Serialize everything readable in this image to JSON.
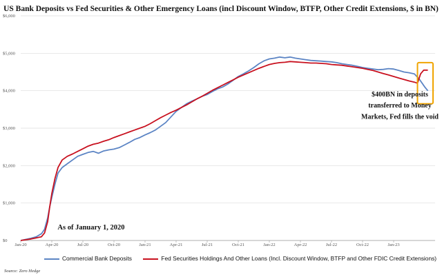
{
  "chart_data": {
    "type": "line",
    "title": "US Bank Deposits vs Fed Securities & Other Emergency Loans (incl Discount Window, BTFP, Other Credit Extensions, $ in BN)",
    "y_unit": "$ in BN",
    "ylim": [
      0,
      6000
    ],
    "y_ticks": [
      0,
      1000,
      2000,
      3000,
      4000,
      5000,
      6000
    ],
    "y_tick_labels": [
      "$0",
      "$1,000",
      "$2,000",
      "$3,000",
      "$4,000",
      "$5,000",
      "$6,000"
    ],
    "x_tick_labels": [
      "Jan-20",
      "Apr-20",
      "Jul-20",
      "Oct-20",
      "Jan-21",
      "Apr-21",
      "Jul-21",
      "Oct-21",
      "Jan-22",
      "Apr-22",
      "Jul-22",
      "Oct-22",
      "Jan-23"
    ],
    "x_ticks_month_index": [
      0,
      3,
      6,
      9,
      12,
      15,
      18,
      21,
      24,
      27,
      30,
      33,
      36
    ],
    "x_range_month_index": [
      0,
      40
    ],
    "grid": "horizontal",
    "legend_position": "bottom",
    "series": [
      {
        "name": "Commercial Bank Deposits",
        "color": "#5b84c4",
        "points": [
          [
            0,
            0
          ],
          [
            0.5,
            30
          ],
          [
            1,
            60
          ],
          [
            1.5,
            100
          ],
          [
            2,
            180
          ],
          [
            2.3,
            300
          ],
          [
            2.6,
            600
          ],
          [
            2.8,
            900
          ],
          [
            3,
            1150
          ],
          [
            3.3,
            1500
          ],
          [
            3.6,
            1800
          ],
          [
            4,
            1950
          ],
          [
            4.5,
            2050
          ],
          [
            5,
            2150
          ],
          [
            5.5,
            2250
          ],
          [
            6,
            2300
          ],
          [
            6.5,
            2350
          ],
          [
            7,
            2380
          ],
          [
            7.5,
            2330
          ],
          [
            8,
            2390
          ],
          [
            8.5,
            2420
          ],
          [
            9,
            2440
          ],
          [
            9.5,
            2480
          ],
          [
            10,
            2550
          ],
          [
            10.5,
            2620
          ],
          [
            11,
            2700
          ],
          [
            11.5,
            2750
          ],
          [
            12,
            2820
          ],
          [
            12.5,
            2880
          ],
          [
            13,
            2950
          ],
          [
            13.5,
            3050
          ],
          [
            14,
            3150
          ],
          [
            14.5,
            3300
          ],
          [
            15,
            3450
          ],
          [
            15.5,
            3550
          ],
          [
            16,
            3650
          ],
          [
            16.5,
            3720
          ],
          [
            17,
            3780
          ],
          [
            17.5,
            3850
          ],
          [
            18,
            3900
          ],
          [
            18.5,
            3980
          ],
          [
            19,
            4050
          ],
          [
            19.5,
            4100
          ],
          [
            20,
            4180
          ],
          [
            20.5,
            4280
          ],
          [
            21,
            4380
          ],
          [
            21.5,
            4450
          ],
          [
            22,
            4530
          ],
          [
            22.5,
            4620
          ],
          [
            23,
            4720
          ],
          [
            23.5,
            4800
          ],
          [
            24,
            4850
          ],
          [
            24.5,
            4870
          ],
          [
            25,
            4900
          ],
          [
            25.5,
            4880
          ],
          [
            26,
            4900
          ],
          [
            26.5,
            4870
          ],
          [
            27,
            4850
          ],
          [
            27.5,
            4830
          ],
          [
            28,
            4810
          ],
          [
            28.5,
            4800
          ],
          [
            29,
            4790
          ],
          [
            29.5,
            4780
          ],
          [
            30,
            4770
          ],
          [
            30.5,
            4750
          ],
          [
            31,
            4720
          ],
          [
            31.5,
            4700
          ],
          [
            32,
            4680
          ],
          [
            32.5,
            4650
          ],
          [
            33,
            4620
          ],
          [
            33.5,
            4600
          ],
          [
            34,
            4580
          ],
          [
            34.5,
            4560
          ],
          [
            35,
            4570
          ],
          [
            35.5,
            4590
          ],
          [
            36,
            4580
          ],
          [
            36.5,
            4540
          ],
          [
            37,
            4500
          ],
          [
            37.5,
            4480
          ],
          [
            38,
            4450
          ],
          [
            38.5,
            4300
          ],
          [
            39,
            4100
          ],
          [
            39.3,
            4000
          ]
        ]
      },
      {
        "name": "Fed Securities Holdings And Other Loans (Incl. Discount Window, BTFP and Other FDIC Credit Extensions)",
        "color": "#c8101e",
        "points": [
          [
            0,
            0
          ],
          [
            0.5,
            20
          ],
          [
            1,
            40
          ],
          [
            1.5,
            70
          ],
          [
            2,
            100
          ],
          [
            2.3,
            200
          ],
          [
            2.6,
            500
          ],
          [
            2.8,
            900
          ],
          [
            3,
            1250
          ],
          [
            3.3,
            1650
          ],
          [
            3.6,
            1950
          ],
          [
            4,
            2150
          ],
          [
            4.5,
            2250
          ],
          [
            5,
            2310
          ],
          [
            5.5,
            2380
          ],
          [
            6,
            2450
          ],
          [
            6.5,
            2520
          ],
          [
            7,
            2570
          ],
          [
            7.5,
            2600
          ],
          [
            8,
            2650
          ],
          [
            8.5,
            2690
          ],
          [
            9,
            2750
          ],
          [
            9.5,
            2800
          ],
          [
            10,
            2850
          ],
          [
            10.5,
            2900
          ],
          [
            11,
            2950
          ],
          [
            11.5,
            3000
          ],
          [
            12,
            3050
          ],
          [
            12.5,
            3120
          ],
          [
            13,
            3200
          ],
          [
            13.5,
            3280
          ],
          [
            14,
            3350
          ],
          [
            14.5,
            3420
          ],
          [
            15,
            3480
          ],
          [
            15.5,
            3550
          ],
          [
            16,
            3620
          ],
          [
            16.5,
            3700
          ],
          [
            17,
            3780
          ],
          [
            17.5,
            3850
          ],
          [
            18,
            3930
          ],
          [
            18.5,
            4010
          ],
          [
            19,
            4080
          ],
          [
            19.5,
            4150
          ],
          [
            20,
            4220
          ],
          [
            20.5,
            4290
          ],
          [
            21,
            4360
          ],
          [
            21.5,
            4420
          ],
          [
            22,
            4480
          ],
          [
            22.5,
            4540
          ],
          [
            23,
            4600
          ],
          [
            23.5,
            4650
          ],
          [
            24,
            4700
          ],
          [
            24.5,
            4730
          ],
          [
            25,
            4750
          ],
          [
            25.5,
            4760
          ],
          [
            26,
            4780
          ],
          [
            26.5,
            4770
          ],
          [
            27,
            4760
          ],
          [
            27.5,
            4750
          ],
          [
            28,
            4740
          ],
          [
            28.5,
            4740
          ],
          [
            29,
            4730
          ],
          [
            29.5,
            4720
          ],
          [
            30,
            4700
          ],
          [
            30.5,
            4690
          ],
          [
            31,
            4680
          ],
          [
            31.5,
            4660
          ],
          [
            32,
            4640
          ],
          [
            32.5,
            4620
          ],
          [
            33,
            4600
          ],
          [
            33.5,
            4570
          ],
          [
            34,
            4540
          ],
          [
            34.5,
            4500
          ],
          [
            35,
            4460
          ],
          [
            35.5,
            4420
          ],
          [
            36,
            4380
          ],
          [
            36.5,
            4340
          ],
          [
            37,
            4300
          ],
          [
            37.5,
            4260
          ],
          [
            38,
            4230
          ],
          [
            38.3,
            4200
          ],
          [
            38.6,
            4450
          ],
          [
            38.9,
            4550
          ],
          [
            39.3,
            4550
          ]
        ]
      }
    ],
    "annotations": [
      {
        "text": "$400BN in deposits",
        "month_index": 36.6,
        "y_value": 3850
      },
      {
        "text": "transferred to Money",
        "month_index": 36.6,
        "y_value": 3550
      },
      {
        "text": "Markets, Fed fills the void",
        "month_index": 36.6,
        "y_value": 3250
      },
      {
        "text": "As of January 1, 2020",
        "month_index": 6.8,
        "y_value": 290
      }
    ],
    "highlight_box": {
      "x_range_month_index": [
        38.3,
        39.8
      ],
      "y_range": [
        3650,
        4750
      ],
      "color": "#f0a400"
    },
    "source": "Source: Zero Hedge"
  }
}
